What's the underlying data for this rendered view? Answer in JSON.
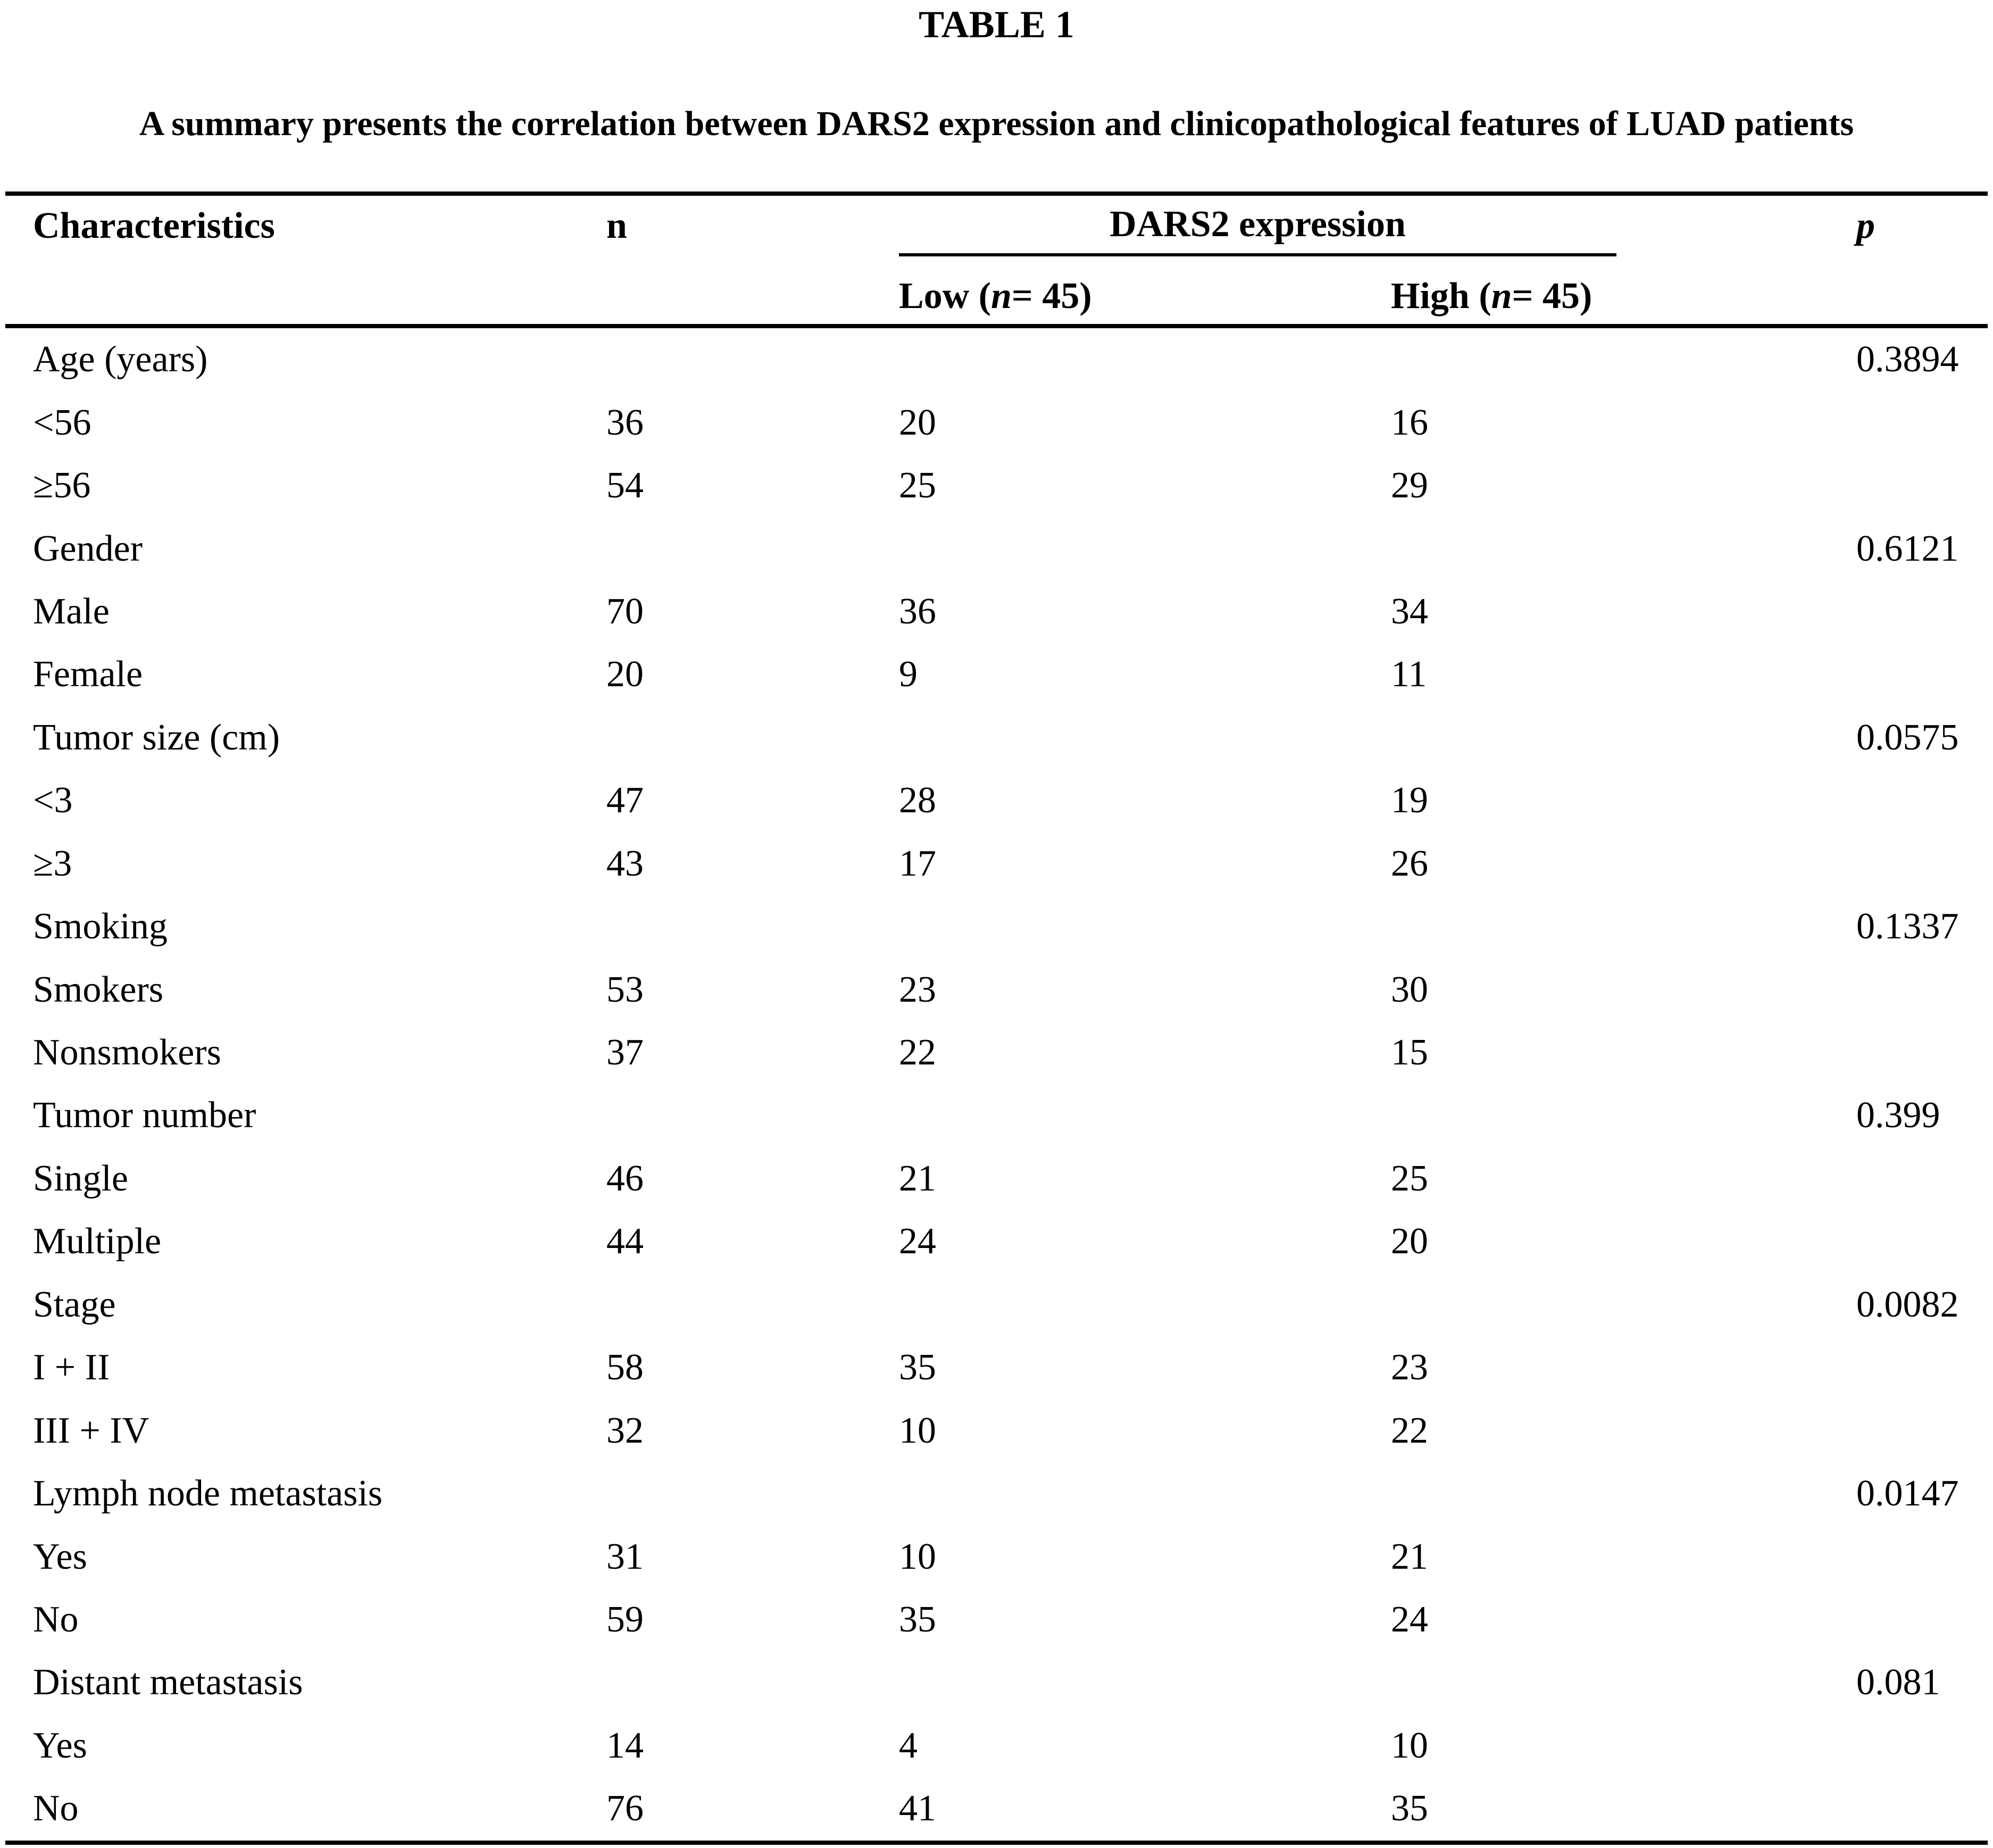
{
  "page": {
    "table_label": "TABLE 1",
    "caption": "A summary presents the correlation between DARS2 expression and clinicopathological features of LUAD patients"
  },
  "header": {
    "characteristics": "Characteristics",
    "n": "n",
    "dars2": "DARS2 expression",
    "p": "p",
    "low": {
      "pre": "Low (",
      "var": "n",
      "post": " = 45)"
    },
    "high": {
      "pre": "High (",
      "var": "n",
      "post": " = 45)"
    }
  },
  "rows": [
    {
      "label": "Age (years)",
      "n": "",
      "low": "",
      "high": "",
      "p": "0.3894"
    },
    {
      "label": "<56",
      "n": "36",
      "low": "20",
      "high": "16",
      "p": ""
    },
    {
      "label": "≥56",
      "n": "54",
      "low": "25",
      "high": "29",
      "p": ""
    },
    {
      "label": "Gender",
      "n": "",
      "low": "",
      "high": "",
      "p": "0.6121"
    },
    {
      "label": "Male",
      "n": "70",
      "low": "36",
      "high": "34",
      "p": ""
    },
    {
      "label": "Female",
      "n": "20",
      "low": "9",
      "high": "11",
      "p": ""
    },
    {
      "label": "Tumor size (cm)",
      "n": "",
      "low": "",
      "high": "",
      "p": "0.0575"
    },
    {
      "label": "<3",
      "n": "47",
      "low": "28",
      "high": "19",
      "p": ""
    },
    {
      "label": "≥3",
      "n": "43",
      "low": "17",
      "high": "26",
      "p": ""
    },
    {
      "label": "Smoking",
      "n": "",
      "low": "",
      "high": "",
      "p": "0.1337"
    },
    {
      "label": "Smokers",
      "n": "53",
      "low": "23",
      "high": "30",
      "p": ""
    },
    {
      "label": "Nonsmokers",
      "n": "37",
      "low": "22",
      "high": "15",
      "p": ""
    },
    {
      "label": "Tumor number",
      "n": "",
      "low": "",
      "high": "",
      "p": "0.399"
    },
    {
      "label": "Single",
      "n": "46",
      "low": "21",
      "high": "25",
      "p": ""
    },
    {
      "label": "Multiple",
      "n": "44",
      "low": "24",
      "high": "20",
      "p": ""
    },
    {
      "label": "Stage",
      "n": "",
      "low": "",
      "high": "",
      "p": "0.0082"
    },
    {
      "label": "I + II",
      "n": "58",
      "low": "35",
      "high": "23",
      "p": ""
    },
    {
      "label": "III + IV",
      "n": "32",
      "low": "10",
      "high": "22",
      "p": ""
    },
    {
      "label": "Lymph node metastasis",
      "n": "",
      "low": "",
      "high": "",
      "p": "0.0147"
    },
    {
      "label": "Yes",
      "n": "31",
      "low": "10",
      "high": "21",
      "p": ""
    },
    {
      "label": "No",
      "n": "59",
      "low": "35",
      "high": "24",
      "p": ""
    },
    {
      "label": "Distant metastasis",
      "n": "",
      "low": "",
      "high": "",
      "p": "0.081"
    },
    {
      "label": "Yes",
      "n": "14",
      "low": "4",
      "high": "10",
      "p": ""
    },
    {
      "label": "No",
      "n": "76",
      "low": "41",
      "high": "35",
      "p": ""
    }
  ]
}
